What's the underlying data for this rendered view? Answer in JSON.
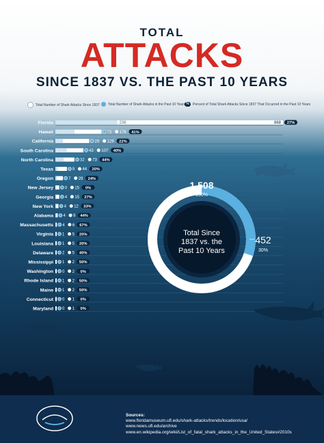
{
  "header": {
    "title_top": "TOTAL",
    "title_main": "ATTACKS",
    "title_sub": "SINCE 1837 VS. THE PAST 10 YEARS"
  },
  "legend": {
    "total": "Total Number of Shark Attacks Since 1837",
    "recent": "Total Number of Shark Attacks in the Past 10 Years",
    "percent_symbol": "%",
    "percent": "Percent of Total Shark Attacks Since 1837 That Occurred in the Past 10 Years"
  },
  "colors": {
    "total_bar": "#ffffff",
    "recent_dot": "#5ab0e0",
    "percent_pill": "#0b2540",
    "title_red": "#d42a24",
    "donut_ring": "#5ab0e0"
  },
  "chart_data": {
    "type": "bar",
    "categories": [
      "Florida",
      "Hawaii",
      "California",
      "South Carolina",
      "North Carolina",
      "Texas",
      "Oregon",
      "New Jersey",
      "Georgia",
      "New York",
      "Alabama",
      "Massachusetts",
      "Virginia",
      "Louisiana",
      "Delaware",
      "Mississippi",
      "Washington",
      "Rhode Island",
      "Maine",
      "Connecticut",
      "Maryland"
    ],
    "series": [
      {
        "name": "Total Number of Shark Attacks Since 1837",
        "values": [
          868,
          176,
          129,
          107,
          73,
          44,
          29,
          15,
          15,
          12,
          9,
          6,
          5,
          5,
          5,
          2,
          2,
          2,
          2,
          1,
          1
        ]
      },
      {
        "name": "Total Number of Shark Attacks in the Past 10 Years",
        "values": [
          236,
          73,
          29,
          43,
          32,
          9,
          7,
          0,
          4,
          4,
          4,
          4,
          1,
          1,
          2,
          1,
          0,
          1,
          1,
          0,
          0
        ]
      }
    ],
    "percent_labels": [
      "27%",
      "41%",
      "22%",
      "40%",
      "44%",
      "20%",
      "24%",
      "0%",
      "27%",
      "33%",
      "44%",
      "67%",
      "20%",
      "20%",
      "40%",
      "50%",
      "0%",
      "50%",
      "50%",
      "0%",
      "0%"
    ],
    "xlim": [
      0,
      868
    ]
  },
  "donut": {
    "total_value": "1,508",
    "total_pct": "100%",
    "recent_value": "452",
    "recent_pct": "30%",
    "recent_fraction": 0.3,
    "center_line1": "Total Since",
    "center_line2": "1837 vs. the",
    "center_line3": "Past 10 Years"
  },
  "footer": {
    "sources_header": "Sources:",
    "sources": [
      "www.floridamuseum.ufl.edu/shark-attacks/trends/location/usa/",
      "www.news.ufl.edu/archive",
      "www.en.wikipedia.org/wiki/List_of_fatal_shark_attacks_in_the_United_States#2010s"
    ]
  }
}
